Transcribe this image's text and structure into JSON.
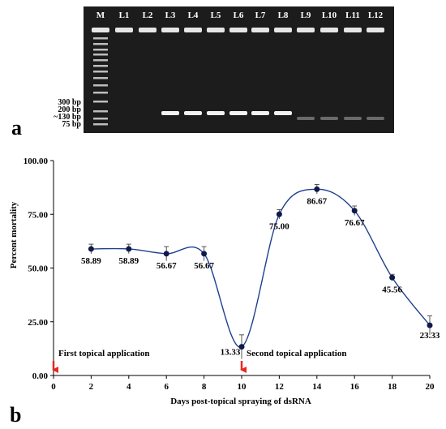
{
  "gel": {
    "panel_label": "a",
    "lane_labels": [
      "M",
      "L1",
      "L2",
      "L3",
      "L4",
      "L5",
      "L6",
      "L7",
      "L8",
      "L9",
      "L10",
      "L11",
      "L12"
    ],
    "size_labels": [
      "300 bp",
      "200 bp",
      "~130 bp",
      "75 bp"
    ],
    "colors": {
      "background": "#1c1c1c",
      "band": "#f2f2f2"
    }
  },
  "chart_data": {
    "type": "line",
    "panel_label": "b",
    "xlabel": "Days post-topical spraying of dsRNA",
    "ylabel": "Percent mortality",
    "x": [
      2,
      4,
      6,
      8,
      10,
      12,
      14,
      16,
      18,
      20
    ],
    "xticks": [
      0,
      2,
      4,
      6,
      8,
      10,
      12,
      14,
      16,
      18,
      20
    ],
    "xlim": [
      0,
      20
    ],
    "ylim": [
      0,
      100
    ],
    "yticks": [
      "0.00",
      "25.00",
      "50.00",
      "75.00",
      "100.00"
    ],
    "series": [
      {
        "values": [
          58.89,
          58.89,
          56.67,
          56.67,
          13.33,
          75.0,
          86.67,
          76.67,
          45.56,
          23.33
        ],
        "error": [
          2.2,
          2.2,
          3.3,
          3.3,
          5.6,
          2.2,
          2.2,
          2.2,
          1.5,
          4.4
        ],
        "labels": [
          "58.89",
          "58.89",
          "56.67",
          "56.67",
          "13.33",
          "75.00",
          "86.67",
          "76.67",
          "45.56",
          "23.33"
        ]
      }
    ],
    "annotations": [
      {
        "text": "First topical application",
        "x": 0
      },
      {
        "text": "Second topical application",
        "x": 10
      }
    ],
    "colors": {
      "line": "#1f3f8f",
      "marker": "#0d1a4a",
      "arrow": "#e8281e",
      "axis": "#000000"
    },
    "grid": false,
    "legend": "none"
  }
}
